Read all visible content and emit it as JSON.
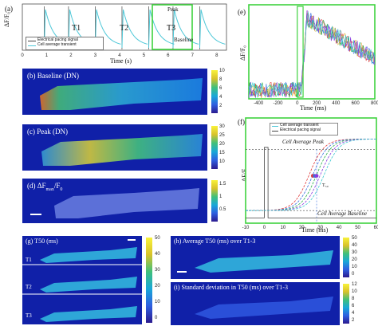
{
  "panel_a": {
    "label": "(a)",
    "ylabel": "ΔF/F₀",
    "xlabel": "Time (s)",
    "xticks": [
      "0",
      "1",
      "2",
      "3",
      "4",
      "5",
      "6",
      "7",
      "8"
    ],
    "transients": [
      "T1",
      "T2",
      "T3"
    ],
    "peak_label": "Peak",
    "baseline_label": "Baseline",
    "legend": [
      "Electrical pacing signal",
      "Cell average transient"
    ]
  },
  "panel_b": {
    "label": "(b) Baseline (DN)",
    "ticks": [
      "10",
      "8",
      "6",
      "4",
      "2"
    ]
  },
  "panel_c": {
    "label": "(c) Peak (DN)",
    "ticks": [
      "30",
      "25",
      "20",
      "15",
      "10"
    ]
  },
  "panel_d": {
    "label": "(d) ΔF",
    "sub": "max",
    "rest": "/F",
    "sub0": "0",
    "ticks": [
      "1.5",
      "1",
      "0.5"
    ]
  },
  "panel_e": {
    "label": "(e)",
    "ylabel": "ΔF/F₀",
    "xlabel": "Time (ms)",
    "xticks": [
      "-400",
      "-200",
      "0",
      "200",
      "400",
      "600",
      "800"
    ]
  },
  "panel_f": {
    "label": "(f)",
    "ylabel": "ΔF/F₀",
    "xlabel": "Time (ms)",
    "xticks": [
      "-10",
      "0",
      "10",
      "20",
      "30",
      "40",
      "50",
      "60"
    ],
    "legend": [
      "Cell average transient",
      "Electrical pacing signal"
    ],
    "peak_label": "Cell Average Peak",
    "baseline_label": "Cell Average Baseline",
    "t50_label": "T₅₀"
  },
  "panel_g": {
    "label": "(g) T50 (ms)",
    "rows": [
      "T1",
      "T2",
      "T3"
    ],
    "ticks": [
      "50",
      "40",
      "30",
      "20",
      "10",
      "0"
    ]
  },
  "panel_h": {
    "label": "(h) Average T50 (ms) over T1-3",
    "ticks": [
      "50",
      "40",
      "30",
      "20",
      "10",
      "0"
    ]
  },
  "panel_i": {
    "label": "(i) Standard deviation in T50 (ms) over T1-3",
    "ticks": [
      "12",
      "10",
      "8",
      "6",
      "4",
      "2"
    ]
  },
  "colors": {
    "highlight": "#3fd23f",
    "trace": "#4fc8d8",
    "pacing": "#444444"
  }
}
